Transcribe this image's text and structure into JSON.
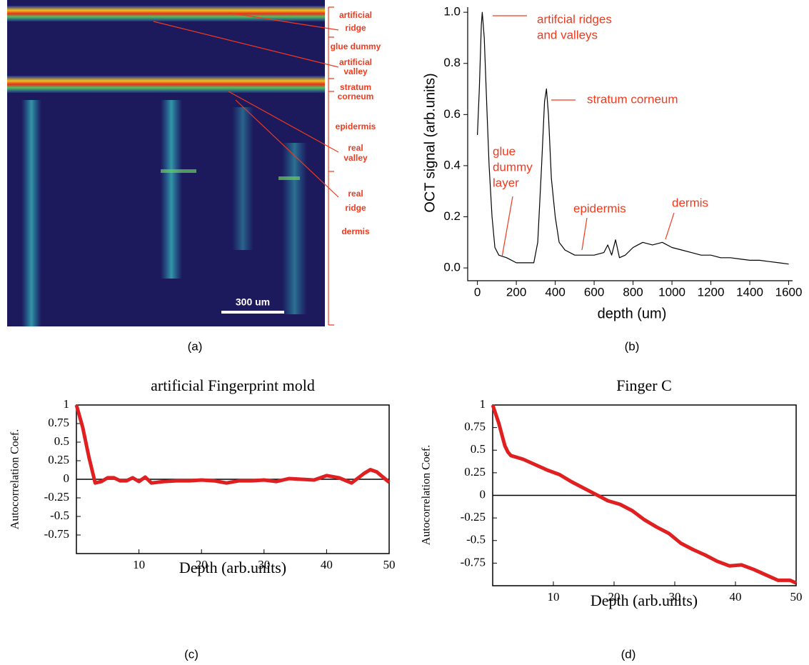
{
  "panel_a": {
    "caption": "(a)",
    "scale_bar": "300 um",
    "labels": [
      [
        "artificial",
        "ridge"
      ],
      [
        "glue dummy"
      ],
      [
        "artificial",
        "valley"
      ],
      [
        "stratum",
        "corneum"
      ],
      [
        "epidermis"
      ],
      [
        "real",
        "valley"
      ],
      [
        "real",
        "ridge"
      ],
      [
        "dermis"
      ]
    ]
  },
  "chart_data": [
    {
      "type": "line",
      "caption": "(b)",
      "x_label": "depth (um)",
      "y_label": "OCT signal (arb.units)",
      "color": "#000000",
      "x": [
        0,
        10,
        20,
        25,
        35,
        50,
        60,
        75,
        90,
        110,
        150,
        200,
        250,
        290,
        310,
        330,
        345,
        355,
        365,
        380,
        400,
        420,
        450,
        500,
        550,
        600,
        650,
        670,
        690,
        710,
        730,
        760,
        800,
        850,
        900,
        950,
        1000,
        1050,
        1100,
        1150,
        1200,
        1250,
        1300,
        1350,
        1400,
        1450,
        1500,
        1550,
        1600
      ],
      "values": [
        0.52,
        0.7,
        0.95,
        1.0,
        0.9,
        0.6,
        0.4,
        0.2,
        0.08,
        0.05,
        0.04,
        0.02,
        0.02,
        0.02,
        0.1,
        0.4,
        0.65,
        0.7,
        0.6,
        0.35,
        0.2,
        0.1,
        0.07,
        0.05,
        0.05,
        0.05,
        0.06,
        0.09,
        0.05,
        0.11,
        0.04,
        0.05,
        0.08,
        0.1,
        0.09,
        0.1,
        0.08,
        0.07,
        0.06,
        0.05,
        0.05,
        0.04,
        0.04,
        0.035,
        0.03,
        0.03,
        0.025,
        0.02,
        0.015
      ],
      "xlim": [
        -50,
        1620
      ],
      "ylim": [
        -0.05,
        1.02
      ],
      "xticks": [
        0,
        200,
        400,
        600,
        800,
        1000,
        1200,
        1400,
        1600
      ],
      "yticks": [
        {
          "value": 0,
          "label": "0.0"
        },
        0.2,
        0.4,
        0.6,
        0.8,
        {
          "value": 1,
          "label": "1.0"
        }
      ],
      "annotations": [
        [
          "artifcial ridges",
          "and valleys"
        ],
        [
          "stratum corneum"
        ],
        [
          "glue",
          "dummy",
          "layer"
        ],
        [
          "epidermis"
        ],
        [
          "dermis"
        ]
      ]
    },
    {
      "type": "line",
      "title": "artificial Fingerprint mold",
      "caption": "(c)",
      "x_label": "Depth (arb.units)",
      "y_label": "Autocorrelation Coef.",
      "color": "#e02020",
      "reference_line": 0,
      "x": [
        0,
        1,
        2,
        3,
        4,
        5,
        6,
        7,
        8,
        9,
        10,
        11,
        12,
        14,
        16,
        18,
        20,
        22,
        24,
        26,
        28,
        30,
        32,
        34,
        36,
        38,
        40,
        42,
        44,
        46,
        47,
        48,
        50
      ],
      "values": [
        1,
        0.7,
        0.3,
        -0.05,
        -0.03,
        0.02,
        0.02,
        -0.02,
        -0.02,
        0.02,
        -0.03,
        0.03,
        -0.05,
        -0.03,
        -0.02,
        -0.02,
        -0.01,
        -0.02,
        -0.05,
        -0.02,
        -0.02,
        -0.01,
        -0.03,
        0.01,
        0.0,
        -0.01,
        0.05,
        0.02,
        -0.05,
        0.08,
        0.13,
        0.1,
        -0.04
      ],
      "xlim": [
        0,
        50
      ],
      "ylim": [
        -1,
        1
      ],
      "xticks": [
        10,
        20,
        30,
        40,
        50
      ],
      "yticks": [
        1,
        0.75,
        0.5,
        0.25,
        0,
        -0.25,
        -0.5,
        -0.75
      ]
    },
    {
      "type": "line",
      "title": "Finger C",
      "caption": "(d)",
      "x_label": "Depth (arb.units)",
      "y_label": "Autocorrelation Coef.",
      "color": "#e02020",
      "reference_line": 0,
      "x": [
        0,
        1,
        2,
        2.5,
        3,
        5,
        7,
        9,
        11,
        13,
        15,
        17,
        19,
        21,
        23,
        25,
        27,
        29,
        31,
        33,
        35,
        37,
        39,
        41,
        43,
        45,
        47,
        49,
        50
      ],
      "values": [
        1,
        0.8,
        0.55,
        0.48,
        0.44,
        0.4,
        0.34,
        0.28,
        0.23,
        0.15,
        0.08,
        0.01,
        -0.06,
        -0.1,
        -0.17,
        -0.27,
        -0.35,
        -0.42,
        -0.53,
        -0.6,
        -0.66,
        -0.73,
        -0.78,
        -0.77,
        -0.82,
        -0.88,
        -0.94,
        -0.94,
        -0.97
      ],
      "xlim": [
        0,
        50
      ],
      "ylim": [
        -1,
        1
      ],
      "xticks": [
        10,
        20,
        30,
        40,
        50
      ],
      "yticks": [
        1,
        0.75,
        0.5,
        0.25,
        0,
        -0.25,
        -0.5,
        -0.75
      ]
    }
  ]
}
